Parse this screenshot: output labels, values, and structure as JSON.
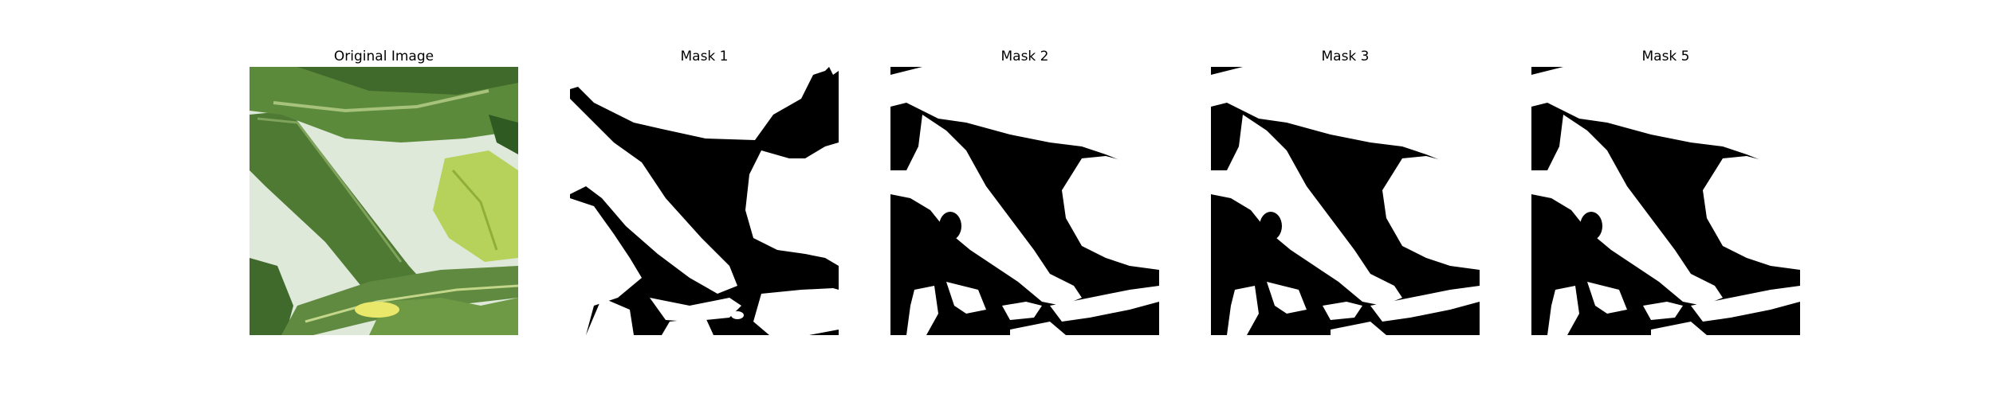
{
  "figure": {
    "panels": [
      {
        "title": "Original Image",
        "kind": "photo"
      },
      {
        "title": "Mask 1",
        "kind": "mask"
      },
      {
        "title": "Mask 2",
        "kind": "mask"
      },
      {
        "title": "Mask 3",
        "kind": "mask"
      },
      {
        "title": "Mask 5",
        "kind": "mask"
      }
    ]
  },
  "colors": {
    "background": "#ffffff",
    "mask_foreground": "#ffffff",
    "mask_background": "#000000",
    "photo_backdrop": "#dfe9da",
    "leaf_dark": "#3f6a2c",
    "leaf_mid": "#5f8a3f",
    "leaf_light": "#b7d25a"
  }
}
